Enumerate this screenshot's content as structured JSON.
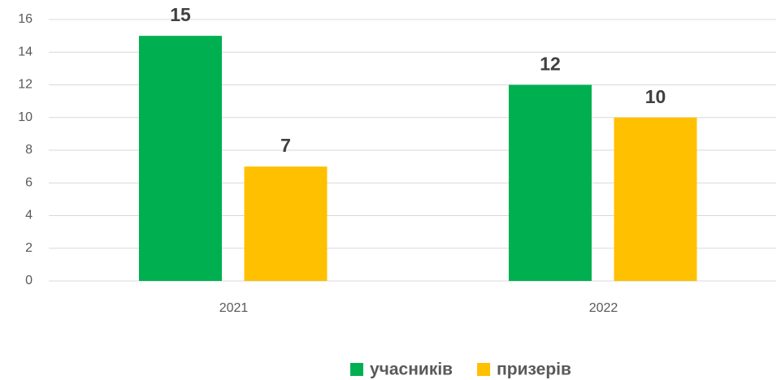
{
  "chart_data": {
    "type": "bar",
    "categories": [
      "2021",
      "2022"
    ],
    "series": [
      {
        "name": "учасників",
        "color": "#00b050",
        "values": [
          15,
          12
        ]
      },
      {
        "name": "призерів",
        "color": "#ffc000",
        "values": [
          7,
          10
        ]
      }
    ],
    "ylim": [
      0,
      16
    ],
    "yticks": [
      0,
      2,
      4,
      6,
      8,
      10,
      12,
      14,
      16
    ],
    "grid": true,
    "legend": "bottom"
  }
}
